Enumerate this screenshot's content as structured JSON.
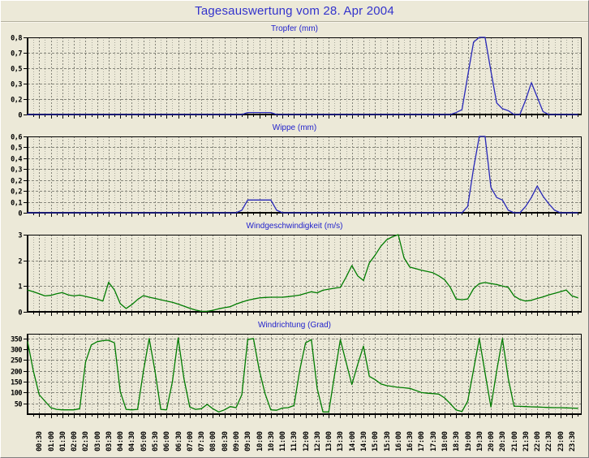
{
  "page": {
    "title": "Tagesauswertung vom 28. Apr 2004"
  },
  "colors": {
    "page_bg": "#ECE9D8",
    "page_title": "#3333CC",
    "chart_title": "#2222CC",
    "blue_series": "#2828B8",
    "green_series": "#007C00",
    "grid_major": "#85857A",
    "grid_minor": "#A9A99C",
    "axis": "#000000"
  },
  "time_axis": {
    "xlim_hours": [
      0,
      23.92
    ],
    "point_step_hours": 0.25,
    "points": 96,
    "label_interval_minutes": 30,
    "labels": [
      "00:30",
      "01:00",
      "01:30",
      "02:00",
      "02:30",
      "03:00",
      "03:30",
      "04:00",
      "04:30",
      "05:00",
      "05:30",
      "06:00",
      "06:30",
      "07:00",
      "07:30",
      "08:00",
      "08:30",
      "09:00",
      "09:30",
      "10:00",
      "10:30",
      "11:00",
      "11:30",
      "12:00",
      "12:30",
      "13:00",
      "13:30",
      "14:00",
      "14:30",
      "15:00",
      "15:30",
      "16:00",
      "16:30",
      "17:00",
      "17:30",
      "18:00",
      "18:30",
      "19:00",
      "19:30",
      "20:00",
      "20:30",
      "21:00",
      "21:30",
      "22:00",
      "22:30",
      "23:00",
      "23:30"
    ]
  },
  "chart_data": [
    {
      "type": "line",
      "title": "Tropfer (mm)",
      "line_color": "#2828B8",
      "ymax": 0.8,
      "yticks": [
        {
          "v": 0,
          "label": "0"
        },
        {
          "v": 0.16,
          "label": "0,2"
        },
        {
          "v": 0.32,
          "label": "0,3"
        },
        {
          "v": 0.48,
          "label": "0,5"
        },
        {
          "v": 0.64,
          "label": "0,7"
        },
        {
          "v": 0.8,
          "label": "0,8"
        }
      ],
      "values": [
        0,
        0,
        0,
        0,
        0,
        0,
        0,
        0,
        0,
        0,
        0,
        0,
        0,
        0,
        0,
        0,
        0,
        0,
        0,
        0,
        0,
        0,
        0,
        0,
        0,
        0,
        0,
        0,
        0,
        0,
        0,
        0,
        0,
        0,
        0,
        0,
        0,
        0,
        0.02,
        0.02,
        0.02,
        0.02,
        0.02,
        0,
        0,
        0,
        0,
        0,
        0,
        0,
        0,
        0,
        0,
        0,
        0,
        0,
        0,
        0,
        0,
        0,
        0,
        0,
        0,
        0,
        0,
        0,
        0,
        0,
        0,
        0,
        0,
        0,
        0,
        0,
        0.02,
        0.05,
        0.4,
        0.75,
        0.8,
        0.8,
        0.45,
        0.12,
        0.06,
        0.04,
        0,
        0,
        0.15,
        0.33,
        0.18,
        0.03,
        0,
        0,
        0,
        0,
        0,
        0
      ]
    },
    {
      "type": "line",
      "title": "Wippe (mm)",
      "line_color": "#2828B8",
      "ymax": 0.6,
      "yticks": [
        {
          "v": 0,
          "label": "0"
        },
        {
          "v": 0.086,
          "label": "0,1"
        },
        {
          "v": 0.171,
          "label": "0,2"
        },
        {
          "v": 0.257,
          "label": "0,2"
        },
        {
          "v": 0.343,
          "label": "0,3"
        },
        {
          "v": 0.429,
          "label": "0,4"
        },
        {
          "v": 0.514,
          "label": "0,5"
        },
        {
          "v": 0.6,
          "label": "0,6"
        }
      ],
      "values": [
        0,
        0,
        0,
        0,
        0,
        0,
        0,
        0,
        0,
        0,
        0,
        0,
        0,
        0,
        0,
        0,
        0,
        0,
        0,
        0,
        0,
        0,
        0,
        0,
        0,
        0,
        0,
        0,
        0,
        0,
        0,
        0,
        0,
        0,
        0,
        0,
        0,
        0.02,
        0.1,
        0.1,
        0.1,
        0.1,
        0.1,
        0.02,
        0,
        0,
        0,
        0,
        0,
        0,
        0,
        0,
        0,
        0,
        0,
        0,
        0,
        0,
        0,
        0,
        0,
        0,
        0,
        0,
        0,
        0,
        0,
        0,
        0,
        0,
        0,
        0,
        0,
        0,
        0,
        0,
        0.05,
        0.35,
        0.6,
        0.6,
        0.2,
        0.12,
        0.1,
        0.02,
        0,
        0,
        0.05,
        0.12,
        0.21,
        0.13,
        0.07,
        0.02,
        0,
        0,
        0,
        0
      ]
    },
    {
      "type": "line",
      "title": "Windgeschwindigkeit (m/s)",
      "line_color": "#007C00",
      "ymax": 3,
      "yticks": [
        {
          "v": 0,
          "label": "0"
        },
        {
          "v": 1,
          "label": "1"
        },
        {
          "v": 2,
          "label": "2"
        },
        {
          "v": 3,
          "label": "3"
        }
      ],
      "values": [
        0.85,
        0.78,
        0.7,
        0.62,
        0.64,
        0.7,
        0.75,
        0.66,
        0.62,
        0.65,
        0.6,
        0.55,
        0.5,
        0.42,
        1.15,
        0.85,
        0.32,
        0.13,
        0.28,
        0.48,
        0.63,
        0.57,
        0.52,
        0.47,
        0.42,
        0.37,
        0.3,
        0.22,
        0.14,
        0.07,
        0.02,
        0.02,
        0.06,
        0.12,
        0.16,
        0.2,
        0.3,
        0.38,
        0.45,
        0.5,
        0.54,
        0.56,
        0.57,
        0.57,
        0.57,
        0.59,
        0.62,
        0.65,
        0.72,
        0.78,
        0.74,
        0.84,
        0.88,
        0.92,
        0.95,
        1.35,
        1.8,
        1.4,
        1.22,
        1.9,
        2.2,
        2.55,
        2.8,
        2.92,
        3.0,
        2.1,
        1.74,
        1.68,
        1.62,
        1.57,
        1.52,
        1.4,
        1.25,
        0.95,
        0.5,
        0.47,
        0.5,
        0.9,
        1.1,
        1.14,
        1.1,
        1.06,
        1.0,
        0.95,
        0.62,
        0.48,
        0.42,
        0.45,
        0.52,
        0.58,
        0.66,
        0.72,
        0.78,
        0.85,
        0.62,
        0.55
      ]
    },
    {
      "type": "line",
      "title": "Windrichtung (Grad)",
      "line_color": "#007C00",
      "ymax": 372,
      "yticks": [
        {
          "v": 50,
          "label": "50"
        },
        {
          "v": 100,
          "label": "100"
        },
        {
          "v": 150,
          "label": "150"
        },
        {
          "v": 200,
          "label": "200"
        },
        {
          "v": 250,
          "label": "250"
        },
        {
          "v": 300,
          "label": "300"
        },
        {
          "v": 350,
          "label": "350"
        }
      ],
      "values": [
        335,
        200,
        90,
        60,
        30,
        22,
        20,
        20,
        20,
        25,
        240,
        320,
        335,
        340,
        342,
        330,
        105,
        22,
        20,
        22,
        200,
        350,
        200,
        22,
        20,
        150,
        352,
        165,
        33,
        22,
        25,
        45,
        25,
        10,
        20,
        35,
        30,
        90,
        345,
        350,
        205,
        95,
        20,
        18,
        28,
        30,
        40,
        204,
        330,
        345,
        120,
        10,
        10,
        180,
        345,
        240,
        137,
        230,
        315,
        175,
        160,
        140,
        132,
        128,
        124,
        122,
        119,
        110,
        100,
        97,
        95,
        93,
        75,
        48,
        19,
        12,
        60,
        205,
        350,
        190,
        33,
        200,
        350,
        165,
        37,
        36,
        35,
        34,
        33,
        32,
        31,
        30,
        30,
        29,
        28,
        27
      ]
    }
  ]
}
